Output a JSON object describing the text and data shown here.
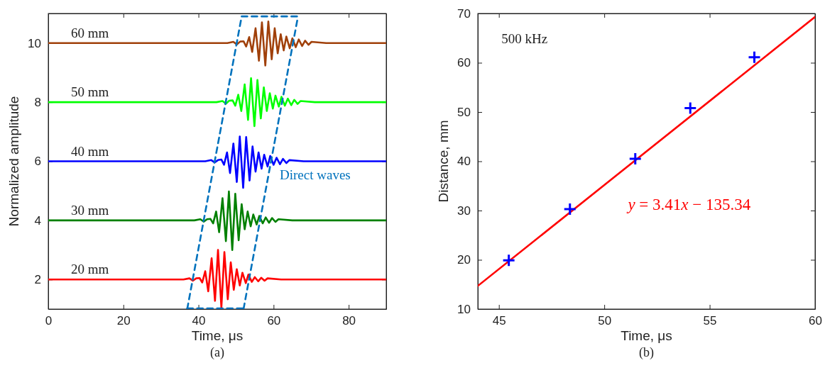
{
  "chart_data": [
    {
      "type": "line",
      "title": "(a)",
      "xlabel": "Time, μs",
      "ylabel": "Normalized amplitude",
      "xlim": [
        0,
        90
      ],
      "ylim": [
        1,
        11
      ],
      "xticks": [
        0,
        20,
        40,
        60,
        80
      ],
      "yticks": [
        2,
        4,
        6,
        8,
        10
      ],
      "annotations": [
        "Direct waves"
      ],
      "series": [
        {
          "name": "20 mm",
          "color": "#ff0000",
          "x": [
            0,
            36,
            37.6,
            38.5,
            39.4,
            40.3,
            41.0,
            41.8,
            42.6,
            43.5,
            44.4,
            45.2,
            46.1,
            46.9,
            47.8,
            48.6,
            49.4,
            50.2,
            51.0,
            51.7,
            52.6,
            53.3,
            54.2,
            55.0,
            55.9,
            56.7,
            57.6,
            58.4,
            62,
            90
          ],
          "values": [
            2,
            2,
            2.04,
            1.96,
            2.04,
            2.05,
            1.9,
            2.28,
            1.6,
            2.72,
            1.28,
            3.0,
            1.05,
            2.93,
            1.33,
            2.58,
            1.65,
            2.35,
            1.8,
            2.23,
            1.88,
            2.17,
            1.92,
            2.08,
            1.94,
            2.06,
            1.96,
            2.04,
            2,
            2
          ]
        },
        {
          "name": "30 mm",
          "color": "#008000",
          "x": [
            0,
            38.9,
            40.5,
            41.4,
            42.3,
            43.2,
            43.9,
            44.7,
            45.5,
            46.4,
            47.3,
            48.1,
            49.0,
            49.8,
            50.7,
            51.5,
            52.3,
            53.1,
            53.9,
            54.6,
            55.5,
            56.2,
            57.1,
            57.9,
            58.8,
            59.6,
            60.5,
            61.3,
            65,
            90
          ],
          "values": [
            4,
            4,
            4.04,
            3.96,
            4.04,
            4.05,
            3.9,
            4.3,
            3.6,
            4.75,
            3.3,
            4.98,
            3.0,
            4.9,
            3.33,
            4.55,
            3.7,
            4.3,
            3.8,
            4.2,
            3.86,
            4.15,
            3.9,
            4.1,
            3.92,
            4.08,
            3.95,
            4.04,
            4,
            4
          ]
        },
        {
          "name": "40 mm",
          "color": "#0000ff",
          "x": [
            0,
            41.8,
            43.4,
            44.3,
            45.2,
            46.1,
            46.8,
            47.6,
            48.4,
            49.3,
            50.2,
            51.0,
            51.9,
            52.7,
            53.6,
            54.4,
            55.2,
            56.0,
            56.8,
            57.5,
            58.4,
            59.1,
            60.0,
            60.8,
            61.7,
            62.5,
            63.4,
            64.2,
            68,
            90
          ],
          "values": [
            6,
            6,
            6.04,
            5.96,
            6.04,
            6.06,
            5.88,
            6.3,
            5.6,
            6.6,
            5.3,
            6.84,
            5.1,
            6.82,
            5.35,
            6.5,
            5.65,
            6.3,
            5.75,
            6.22,
            5.82,
            6.18,
            5.88,
            6.12,
            5.9,
            6.08,
            5.94,
            6.04,
            6,
            6
          ]
        },
        {
          "name": "50 mm",
          "color": "#00ff00",
          "x": [
            0,
            44.8,
            46.4,
            47.3,
            48.2,
            49.1,
            49.8,
            50.6,
            51.4,
            52.3,
            53.2,
            54.0,
            54.9,
            55.7,
            56.6,
            57.4,
            58.2,
            59.0,
            59.8,
            60.5,
            61.4,
            62.1,
            63.0,
            63.8,
            64.7,
            65.5,
            66.4,
            67.2,
            71,
            90
          ],
          "values": [
            8,
            8,
            8.04,
            7.95,
            8.05,
            8.06,
            7.88,
            8.25,
            7.7,
            8.6,
            7.4,
            8.81,
            7.19,
            8.75,
            7.45,
            8.5,
            7.7,
            8.3,
            7.78,
            8.22,
            7.85,
            8.18,
            7.88,
            8.12,
            7.9,
            8.08,
            7.94,
            8.04,
            8,
            8
          ]
        },
        {
          "name": "60 mm",
          "color": "#a0400a",
          "x": [
            0,
            47.7,
            49.3,
            50.2,
            51.1,
            52.0,
            52.7,
            53.5,
            54.3,
            55.2,
            56.1,
            56.9,
            57.8,
            58.6,
            59.5,
            60.3,
            61.1,
            61.9,
            62.7,
            63.4,
            64.3,
            65.0,
            65.9,
            66.7,
            67.6,
            68.4,
            69.3,
            70.1,
            74,
            90
          ],
          "values": [
            10,
            10,
            10.04,
            9.95,
            10.05,
            10.06,
            9.88,
            10.2,
            9.7,
            10.5,
            9.4,
            10.7,
            9.24,
            10.73,
            9.45,
            10.5,
            9.65,
            10.3,
            9.75,
            10.22,
            9.82,
            10.16,
            9.86,
            10.12,
            9.9,
            10.08,
            9.94,
            10.04,
            10,
            10
          ]
        },
        {
          "color": "#0072bd",
          "line_style": "dashed",
          "x": [
            37,
            51.5
          ],
          "values": [
            1,
            10.9
          ]
        },
        {
          "color": "#0072bd",
          "line_style": "dashed",
          "x": [
            52,
            66.5
          ],
          "values": [
            1,
            10.9
          ]
        },
        {
          "color": "#0072bd",
          "line_style": "dashed",
          "x": [
            51.5,
            66.5
          ],
          "values": [
            10.9,
            10.9
          ]
        },
        {
          "color": "#0072bd",
          "line_style": "dashed",
          "x": [
            37,
            52
          ],
          "values": [
            1.02,
            1.02
          ]
        }
      ]
    },
    {
      "type": "scatter",
      "title": "(b)",
      "xlabel": "Time, μs",
      "ylabel": "Distance, mm",
      "xlim": [
        44,
        60
      ],
      "ylim": [
        10,
        70
      ],
      "xticks": [
        45,
        50,
        55,
        60
      ],
      "yticks": [
        10,
        20,
        30,
        40,
        50,
        60,
        70
      ],
      "annotations": [
        "500 kHz",
        "y = 3.41x − 135.34"
      ],
      "series": [
        {
          "type": "line",
          "color": "#ff0000",
          "x": [
            44,
            60
          ],
          "values": [
            14.7,
            69.3
          ]
        },
        {
          "marker": "cross",
          "color": "#0000ff",
          "x": [
            45.47,
            48.37,
            51.47,
            54.08,
            57.12
          ],
          "values": [
            19.9,
            30.3,
            40.5,
            50.8,
            61.1
          ]
        }
      ]
    }
  ]
}
